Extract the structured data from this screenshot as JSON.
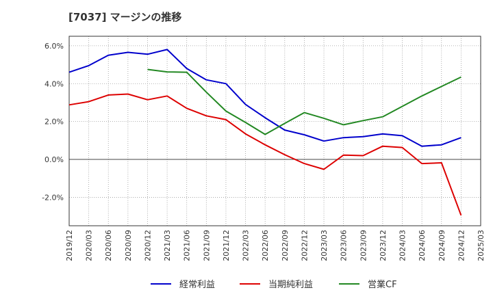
{
  "chart_data": {
    "type": "line",
    "title": "[7037]  マージンの推移",
    "x": [
      "2019/12",
      "2020/03",
      "2020/06",
      "2020/09",
      "2020/12",
      "2021/03",
      "2021/06",
      "2021/09",
      "2021/12",
      "2022/03",
      "2022/06",
      "2022/09",
      "2022/12",
      "2023/03",
      "2023/06",
      "2023/09",
      "2023/12",
      "2024/03",
      "2024/06",
      "2024/09",
      "2024/12",
      "2025/03"
    ],
    "ylim": [
      -3.5,
      6.5
    ],
    "yticks": [
      6.0,
      4.0,
      2.0,
      0.0,
      -2.0
    ],
    "ytick_labels": [
      "6.0%",
      "4.0%",
      "2.0%",
      "0.0%",
      "-2.0%"
    ],
    "grid": true,
    "legend_position": "bottom",
    "series": [
      {
        "name": "経常利益",
        "color": "#0000cc",
        "values": [
          4.6,
          4.95,
          5.5,
          5.65,
          5.55,
          5.8,
          4.8,
          4.2,
          4.0,
          2.9,
          2.2,
          1.55,
          1.3,
          0.97,
          1.15,
          1.2,
          1.35,
          1.25,
          0.7,
          0.77,
          1.15,
          null
        ]
      },
      {
        "name": "当期純利益",
        "color": "#dd0000",
        "values": [
          2.88,
          3.05,
          3.4,
          3.45,
          3.15,
          3.35,
          2.7,
          2.3,
          2.1,
          1.35,
          0.77,
          0.25,
          -0.22,
          -0.52,
          0.23,
          0.2,
          0.7,
          0.63,
          -0.22,
          -0.18,
          -2.95,
          null
        ]
      },
      {
        "name": "営業CF",
        "color": "#228822",
        "values": [
          null,
          null,
          null,
          null,
          4.75,
          4.62,
          4.6,
          3.55,
          2.55,
          1.95,
          1.32,
          1.9,
          2.47,
          2.17,
          1.83,
          2.05,
          2.25,
          2.8,
          3.35,
          3.85,
          4.35,
          null
        ]
      }
    ]
  }
}
